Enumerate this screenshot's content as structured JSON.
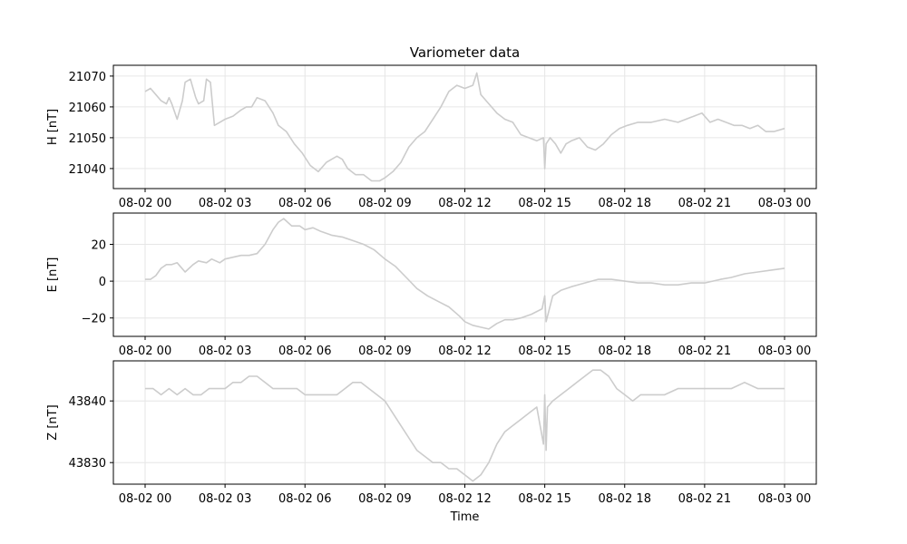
{
  "chart_data": {
    "type": "line",
    "title": "Variometer data",
    "xlabel": "Time",
    "grid": true,
    "line_color": "#cccccc",
    "grid_color": "#e6e6e6",
    "x_range": [
      "08-02 00:00",
      "08-03 00:00"
    ],
    "x_ticks": [
      "08-02 00",
      "08-02 03",
      "08-02 06",
      "08-02 09",
      "08-02 12",
      "08-02 15",
      "08-02 18",
      "08-02 21",
      "08-03 00"
    ],
    "panels": [
      {
        "name": "H",
        "ylabel": "H [nT]",
        "ylim": [
          21033.5,
          21073.5
        ],
        "yticks": [
          21040,
          21050,
          21060,
          21070
        ],
        "series": [
          {
            "hours": [
              0,
              0.2,
              0.4,
              0.6,
              0.8,
              0.9,
              1.0,
              1.2,
              1.4,
              1.5,
              1.7,
              1.9,
              2.0,
              2.2,
              2.3,
              2.45,
              2.6,
              2.8,
              3.0,
              3.3,
              3.6,
              3.8,
              4.0,
              4.2,
              4.5,
              4.8,
              5.0,
              5.3,
              5.6,
              5.9,
              6.2,
              6.5,
              6.8,
              7.0,
              7.2,
              7.4,
              7.6,
              7.9,
              8.2,
              8.5,
              8.8,
              9.0,
              9.3,
              9.6,
              9.9,
              10.2,
              10.5,
              10.8,
              11.1,
              11.4,
              11.7,
              12.0,
              12.3,
              12.45,
              12.6,
              12.8,
              13.0,
              13.2,
              13.5,
              13.8,
              14.1,
              14.4,
              14.7,
              14.95,
              15.0,
              15.05,
              15.2,
              15.4,
              15.6,
              15.8,
              16.0,
              16.3,
              16.6,
              16.9,
              17.2,
              17.5,
              17.8,
              18.1,
              18.5,
              19.0,
              19.5,
              20.0,
              20.3,
              20.6,
              20.9,
              21.2,
              21.5,
              21.8,
              22.1,
              22.4,
              22.7,
              23.0,
              23.3,
              23.6,
              24.0
            ],
            "values": [
              21065,
              21066,
              21064,
              21062,
              21061,
              21063,
              21061,
              21056,
              21062,
              21068,
              21069,
              21063,
              21061,
              21062,
              21069,
              21068,
              21054,
              21055,
              21056,
              21057,
              21059,
              21060,
              21060,
              21063,
              21062,
              21058,
              21054,
              21052,
              21048,
              21045,
              21041,
              21039,
              21042,
              21043,
              21044,
              21043,
              21040,
              21038,
              21038,
              21036,
              21036,
              21037,
              21039,
              21042,
              21047,
              21050,
              21052,
              21056,
              21060,
              21065,
              21067,
              21066,
              21067,
              21071,
              21064,
              21062,
              21060,
              21058,
              21056,
              21055,
              21051,
              21050,
              21049,
              21050,
              21040,
              21048,
              21050,
              21048,
              21045,
              21048,
              21049,
              21050,
              21047,
              21046,
              21048,
              21051,
              21053,
              21054,
              21055,
              21055,
              21056,
              21055,
              21056,
              21057,
              21058,
              21055,
              21056,
              21055,
              21054,
              21054,
              21053,
              21054,
              21052,
              21052,
              21053
            ]
          }
        ]
      },
      {
        "name": "E",
        "ylabel": "E [nT]",
        "ylim": [
          -30,
          37
        ],
        "yticks": [
          -20,
          0,
          20
        ],
        "series": [
          {
            "hours": [
              0,
              0.2,
              0.4,
              0.6,
              0.8,
              1.0,
              1.2,
              1.5,
              1.8,
              2.0,
              2.3,
              2.5,
              2.8,
              3.0,
              3.3,
              3.6,
              3.9,
              4.2,
              4.5,
              4.8,
              5.0,
              5.2,
              5.5,
              5.8,
              6.0,
              6.3,
              6.6,
              7.0,
              7.4,
              7.8,
              8.2,
              8.6,
              9.0,
              9.4,
              9.8,
              10.2,
              10.6,
              11.0,
              11.4,
              11.8,
              12.0,
              12.3,
              12.6,
              12.9,
              13.2,
              13.5,
              13.8,
              14.1,
              14.5,
              14.9,
              15.0,
              15.05,
              15.3,
              15.6,
              16.0,
              16.5,
              17.0,
              17.5,
              18.0,
              18.5,
              19.0,
              19.5,
              20.0,
              20.5,
              21.0,
              21.3,
              21.6,
              22.0,
              22.5,
              23.0,
              23.5,
              24.0
            ],
            "values": [
              1,
              1,
              3,
              7,
              9,
              9,
              10,
              5,
              9,
              11,
              10,
              12,
              10,
              12,
              13,
              14,
              14,
              15,
              20,
              28,
              32,
              34,
              30,
              30,
              28,
              29,
              27,
              25,
              24,
              22,
              20,
              17,
              12,
              8,
              2,
              -4,
              -8,
              -11,
              -14,
              -19,
              -22,
              -24,
              -25,
              -26,
              -23,
              -21,
              -21,
              -20,
              -18,
              -15,
              -8,
              -22,
              -8,
              -5,
              -3,
              -1,
              1,
              1,
              0,
              -1,
              -1,
              -2,
              -2,
              -1,
              -1,
              0,
              1,
              2,
              4,
              5,
              6,
              7
            ]
          }
        ]
      },
      {
        "name": "Z",
        "ylabel": "Z [nT]",
        "ylim": [
          43826.5,
          43846.5
        ],
        "yticks": [
          43830,
          43840
        ],
        "series": [
          {
            "hours": [
              0,
              0.3,
              0.6,
              0.9,
              1.2,
              1.5,
              1.8,
              2.1,
              2.4,
              2.7,
              3.0,
              3.3,
              3.6,
              3.9,
              4.2,
              4.5,
              4.8,
              5.1,
              5.4,
              5.7,
              6.0,
              6.3,
              6.6,
              6.9,
              7.2,
              7.5,
              7.8,
              8.1,
              8.4,
              8.7,
              9.0,
              9.3,
              9.6,
              9.9,
              10.2,
              10.5,
              10.8,
              11.1,
              11.4,
              11.7,
              12.0,
              12.3,
              12.6,
              12.9,
              13.2,
              13.5,
              13.8,
              14.1,
              14.4,
              14.7,
              14.95,
              15.0,
              15.05,
              15.1,
              15.3,
              15.6,
              15.9,
              16.2,
              16.5,
              16.8,
              17.1,
              17.4,
              17.7,
              18.0,
              18.3,
              18.6,
              19.0,
              19.5,
              20.0,
              20.5,
              21.0,
              21.5,
              22.0,
              22.5,
              23.0,
              23.5,
              24.0
            ],
            "values": [
              43842,
              43842,
              43841,
              43842,
              43841,
              43842,
              43841,
              43841,
              43842,
              43842,
              43842,
              43843,
              43843,
              43844,
              43844,
              43843,
              43842,
              43842,
              43842,
              43842,
              43841,
              43841,
              43841,
              43841,
              43841,
              43842,
              43843,
              43843,
              43842,
              43841,
              43840,
              43838,
              43836,
              43834,
              43832,
              43831,
              43830,
              43830,
              43829,
              43829,
              43828,
              43827,
              43828,
              43830,
              43833,
              43835,
              43836,
              43837,
              43838,
              43839,
              43833,
              43841,
              43832,
              43839,
              43840,
              43841,
              43842,
              43843,
              43844,
              43845,
              43845,
              43844,
              43842,
              43841,
              43840,
              43841,
              43841,
              43841,
              43842,
              43842,
              43842,
              43842,
              43842,
              43843,
              43842,
              43842,
              43842
            ]
          }
        ]
      }
    ]
  }
}
